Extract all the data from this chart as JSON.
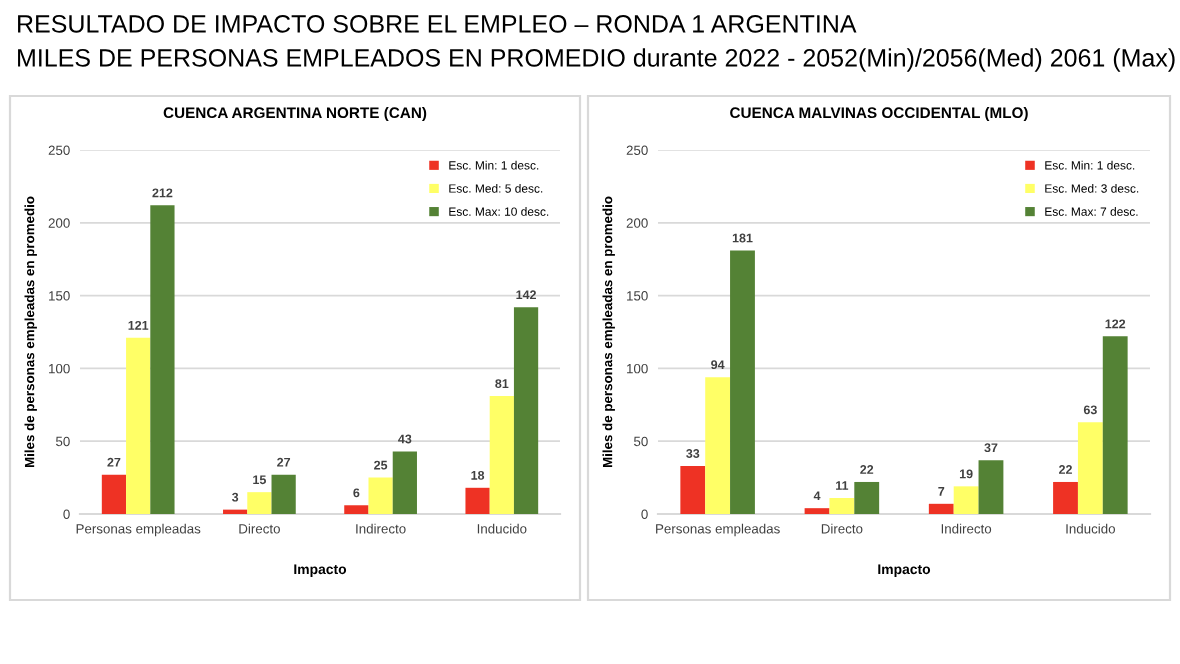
{
  "chart_data": [
    {
      "type": "bar",
      "title": "CUENCA ARGENTINA NORTE (CAN)",
      "annotations": [
        "RESULTADO DE IMPACTO SOBRE EL EMPLEO – RONDA 1 ARGENTINA",
        "MILES DE PERSONAS EMPLEADOS EN PROMEDIO durante 2022 - 2052(Min)/2056(Med) 2061 (Max)"
      ],
      "xlabel": "Impacto",
      "ylabel": "Miles de personas empleadas en promedio",
      "categories": [
        "Personas empleadas",
        "Directo",
        "Indirecto",
        "Inducido"
      ],
      "series": [
        {
          "name": "Esc. Min: 1 desc.",
          "color": "#ee3224",
          "values": [
            27,
            3,
            6,
            18
          ]
        },
        {
          "name": "Esc. Med: 5 desc.",
          "color": "#ffff66",
          "values": [
            121,
            15,
            25,
            81
          ]
        },
        {
          "name": "Esc. Max: 10 desc.",
          "color": "#548235",
          "values": [
            212,
            27,
            43,
            142
          ]
        }
      ],
      "ylim": [
        0,
        250
      ],
      "yticks": [
        0,
        50,
        100,
        150,
        200,
        250
      ],
      "grid": "y",
      "legend": "top right",
      "data_labels": true
    },
    {
      "type": "bar",
      "title": "CUENCA MALVINAS OCCIDENTAL (MLO)",
      "xlabel": "Impacto",
      "ylabel": "Miles de personas empleadas en promedio",
      "categories": [
        "Personas empleadas",
        "Directo",
        "Indirecto",
        "Inducido"
      ],
      "series": [
        {
          "name": "Esc. Min: 1 desc.",
          "color": "#ee3224",
          "values": [
            33,
            4,
            7,
            22
          ]
        },
        {
          "name": "Esc. Med: 3 desc.",
          "color": "#ffff66",
          "values": [
            94,
            11,
            19,
            63
          ]
        },
        {
          "name": "Esc. Max: 7 desc.",
          "color": "#548235",
          "values": [
            181,
            22,
            37,
            122
          ]
        }
      ],
      "ylim": [
        0,
        250
      ],
      "yticks": [
        0,
        50,
        100,
        150,
        200,
        250
      ],
      "grid": "y",
      "legend": "top right",
      "data_labels": true
    }
  ]
}
